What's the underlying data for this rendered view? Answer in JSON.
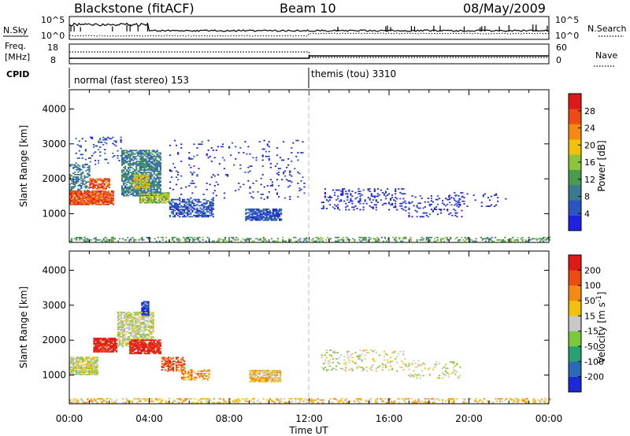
{
  "header": {
    "station": "Blackstone (fitACF)",
    "beam": "Beam 10",
    "date": "08/May/2009"
  },
  "strip_labels": {
    "nsky": "N.Sky",
    "nsearch": "N.Search",
    "freq_line1": "Freq.",
    "freq_line2": "[MHz]",
    "nave": "Nave",
    "cpid": "CPID"
  },
  "strip_ticks": {
    "nsky_left": [
      "10^5",
      "10^0"
    ],
    "nsky_right": [
      "10^5",
      "10^0"
    ],
    "freq_left": [
      "18",
      "8"
    ],
    "nave_right": [
      "60",
      "0"
    ]
  },
  "cpid_modes": [
    {
      "label": "normal (fast stereo) 153",
      "start_hour": 0
    },
    {
      "label": "themis (tou) 3310",
      "start_hour": 12
    }
  ],
  "chart_data": [
    {
      "type": "heatmap",
      "title": "",
      "xlabel": "Time UT",
      "ylabel": "Slant Range [km]",
      "x_ticks": [
        "00:00",
        "04:00",
        "08:00",
        "12:00",
        "16:00",
        "20:00",
        "00:00"
      ],
      "xlim_hours": [
        0,
        24
      ],
      "y_ticks": [
        1000,
        2000,
        3000,
        4000
      ],
      "ylim": [
        180,
        4550
      ],
      "colorbar": {
        "label": "Power [dB]",
        "ticks": [
          4,
          8,
          12,
          16,
          20,
          24,
          28
        ],
        "range": [
          0,
          32
        ],
        "colors": [
          "#1e22e0",
          "#2a55c0",
          "#3a7a90",
          "#4a9a50",
          "#8cc43c",
          "#f2c20a",
          "#f48a10",
          "#ee4a14",
          "#e01818"
        ]
      },
      "echo_regions": [
        {
          "t": [
            0.0,
            2.2
          ],
          "r": [
            1250,
            1650
          ],
          "level": 7,
          "density": 0.9
        },
        {
          "t": [
            0.0,
            1.0
          ],
          "r": [
            1650,
            2400
          ],
          "level": 2,
          "density": 0.45
        },
        {
          "t": [
            1.0,
            2.0
          ],
          "r": [
            1700,
            2000
          ],
          "level": 7,
          "density": 0.75
        },
        {
          "t": [
            0.3,
            2.6
          ],
          "r": [
            2400,
            3200
          ],
          "level": 1,
          "density": 0.12
        },
        {
          "t": [
            2.6,
            4.6
          ],
          "r": [
            1500,
            2800
          ],
          "level": 2,
          "density": 0.75
        },
        {
          "t": [
            3.2,
            4.0
          ],
          "r": [
            1700,
            2100
          ],
          "level": 5,
          "density": 0.7
        },
        {
          "t": [
            3.5,
            5.0
          ],
          "r": [
            1300,
            1600
          ],
          "level": 4,
          "density": 0.75
        },
        {
          "t": [
            5.0,
            7.2
          ],
          "r": [
            900,
            1400
          ],
          "level": 1,
          "density": 0.6
        },
        {
          "t": [
            8.8,
            10.6
          ],
          "r": [
            800,
            1150
          ],
          "level": 1,
          "density": 0.8
        },
        {
          "t": [
            5.0,
            11.8
          ],
          "r": [
            1400,
            3100
          ],
          "level": 0,
          "density": 0.05
        },
        {
          "t": [
            12.6,
            16.8
          ],
          "r": [
            1100,
            1700
          ],
          "level": 0,
          "density": 0.2
        },
        {
          "t": [
            16.8,
            19.6
          ],
          "r": [
            900,
            1500
          ],
          "level": 0,
          "density": 0.15
        },
        {
          "t": [
            19.0,
            21.8
          ],
          "r": [
            1200,
            1600
          ],
          "level": 0,
          "density": 0.12
        },
        {
          "t": [
            0.0,
            24.0
          ],
          "r": [
            200,
            320
          ],
          "level": 3,
          "density": 0.35
        }
      ]
    },
    {
      "type": "heatmap",
      "title": "",
      "xlabel": "Time UT",
      "ylabel": "Slant Range [km]",
      "x_ticks": [
        "00:00",
        "04:00",
        "08:00",
        "12:00",
        "16:00",
        "20:00",
        "00:00"
      ],
      "xlim_hours": [
        0,
        24
      ],
      "y_ticks": [
        1000,
        2000,
        3000,
        4000
      ],
      "ylim": [
        180,
        4550
      ],
      "colorbar": {
        "label": "Velocity [m s^-1]",
        "ticks": [
          200,
          100,
          50,
          15,
          -15,
          -50,
          -100,
          -200
        ],
        "colors": [
          "#1a2ad8",
          "#2a6ab8",
          "#2aa070",
          "#7ac83c",
          "#c8c8c8",
          "#f2c20a",
          "#f48a10",
          "#ee4a14",
          "#e01818"
        ]
      },
      "echo_regions": [
        {
          "t": [
            0.0,
            1.4
          ],
          "r": [
            1000,
            1500
          ],
          "level": 4,
          "density": 0.85
        },
        {
          "t": [
            1.2,
            2.4
          ],
          "r": [
            1650,
            2050
          ],
          "level": 8,
          "density": 0.85
        },
        {
          "t": [
            2.4,
            4.2
          ],
          "r": [
            1800,
            2800
          ],
          "level": 4,
          "density": 0.7
        },
        {
          "t": [
            3.0,
            4.6
          ],
          "r": [
            1600,
            2000
          ],
          "level": 8,
          "density": 0.8
        },
        {
          "t": [
            3.6,
            4.0
          ],
          "r": [
            2700,
            3100
          ],
          "level": 0,
          "density": 0.8
        },
        {
          "t": [
            4.6,
            5.8
          ],
          "r": [
            1100,
            1500
          ],
          "level": 7,
          "density": 0.6
        },
        {
          "t": [
            5.6,
            7.0
          ],
          "r": [
            850,
            1150
          ],
          "level": 6,
          "density": 0.5
        },
        {
          "t": [
            9.0,
            10.6
          ],
          "r": [
            800,
            1150
          ],
          "level": 5,
          "density": 0.8
        },
        {
          "t": [
            12.6,
            16.8
          ],
          "r": [
            1100,
            1700
          ],
          "level": 4,
          "density": 0.2
        },
        {
          "t": [
            16.8,
            19.6
          ],
          "r": [
            900,
            1400
          ],
          "level": 4,
          "density": 0.15
        },
        {
          "t": [
            0.0,
            24.0
          ],
          "r": [
            200,
            320
          ],
          "level": 5,
          "density": 0.35
        }
      ]
    }
  ]
}
